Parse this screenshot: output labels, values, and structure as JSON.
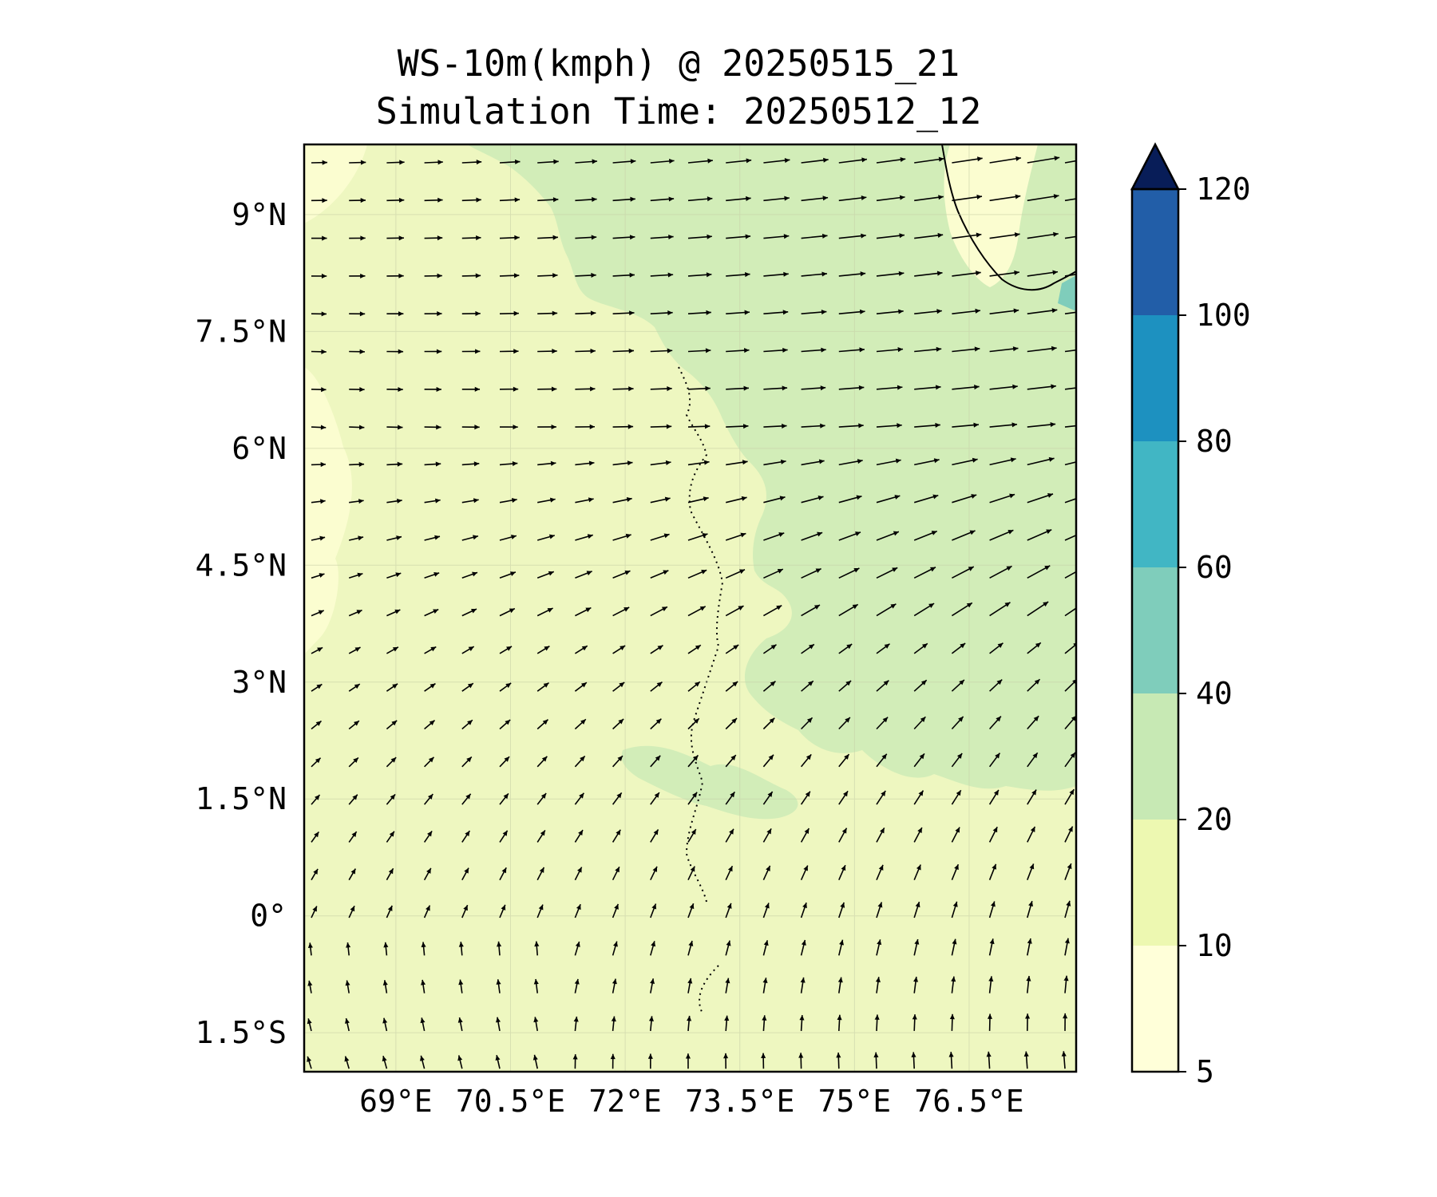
{
  "title": {
    "line1": "WS-10m(kmph) @ 20250515_21",
    "line2": "Simulation Time: 20250512_12"
  },
  "map": {
    "lon_range": [
      67.8,
      77.9
    ],
    "lat_range": [
      -2.0,
      9.9
    ],
    "lon_ticks": [
      {
        "value": 69.0,
        "label": "69°E"
      },
      {
        "value": 70.5,
        "label": "70.5°E"
      },
      {
        "value": 72.0,
        "label": "72°E"
      },
      {
        "value": 73.5,
        "label": "73.5°E"
      },
      {
        "value": 75.0,
        "label": "75°E"
      },
      {
        "value": 76.5,
        "label": "76.5°E"
      }
    ],
    "lat_ticks": [
      {
        "value": 9.0,
        "label": "9°N"
      },
      {
        "value": 7.5,
        "label": "7.5°N"
      },
      {
        "value": 6.0,
        "label": "6°N"
      },
      {
        "value": 4.5,
        "label": "4.5°N"
      },
      {
        "value": 3.0,
        "label": "3°N"
      },
      {
        "value": 1.5,
        "label": "1.5°N"
      },
      {
        "value": 0.0,
        "label": "0°"
      },
      {
        "value": -1.5,
        "label": "1.5°S"
      }
    ],
    "background_color": "#eef7c0",
    "vectors": "wind arrows on a regular grid, westerly in north veering to southerly in south"
  },
  "colorbar": {
    "levels": [
      5,
      10,
      20,
      40,
      60,
      80,
      100,
      120
    ],
    "labels": [
      "5",
      "10",
      "20",
      "40",
      "60",
      "80",
      "100",
      "120"
    ],
    "colors": [
      "#ffffd9",
      "#edf8b1",
      "#c7e9b4",
      "#7fcdbb",
      "#41b6c4",
      "#1d91c0",
      "#225ea8",
      "#253494"
    ],
    "extend_color": "#081d58",
    "extend": "max"
  }
}
